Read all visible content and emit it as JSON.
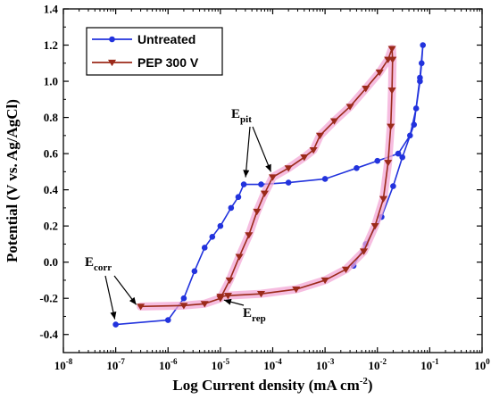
{
  "chart_data": {
    "type": "line",
    "x_scale": "log",
    "xlabel": "Log Current density (mA cm",
    "xlabel_sup": "-2",
    "xlabel_close": ")",
    "ylabel": "Potential (V vs. Ag/AgCl)",
    "xlim": [
      1e-08,
      1
    ],
    "ylim": [
      -0.5,
      1.4
    ],
    "x_ticks": [
      {
        "base": "10",
        "exp": "-8",
        "value": 1e-08
      },
      {
        "base": "10",
        "exp": "-7",
        "value": 1e-07
      },
      {
        "base": "10",
        "exp": "-6",
        "value": 1e-06
      },
      {
        "base": "10",
        "exp": "-5",
        "value": 1e-05
      },
      {
        "base": "10",
        "exp": "-4",
        "value": 0.0001
      },
      {
        "base": "10",
        "exp": "-3",
        "value": 0.001
      },
      {
        "base": "10",
        "exp": "-2",
        "value": 0.01
      },
      {
        "base": "10",
        "exp": "-1",
        "value": 0.1
      },
      {
        "base": "10",
        "exp": "0",
        "value": 1
      }
    ],
    "y_ticks": [
      "-0.4",
      "-0.2",
      "0.0",
      "0.2",
      "0.4",
      "0.6",
      "0.8",
      "1.0",
      "1.2",
      "1.4"
    ],
    "y_tick_values": [
      -0.4,
      -0.2,
      0.0,
      0.2,
      0.4,
      0.6,
      0.8,
      1.0,
      1.2,
      1.4
    ],
    "legend_position": "top-left",
    "series": [
      {
        "name": "Untreated",
        "color": "#2233dd",
        "marker": "circle",
        "points": [
          [
            1e-07,
            -0.345
          ],
          [
            1e-06,
            -0.32
          ],
          [
            2e-06,
            -0.2
          ],
          [
            3.2e-06,
            -0.05
          ],
          [
            5e-06,
            0.08
          ],
          [
            7e-06,
            0.14
          ],
          [
            1e-05,
            0.2
          ],
          [
            1.6e-05,
            0.3
          ],
          [
            2.2e-05,
            0.36
          ],
          [
            2.8e-05,
            0.43
          ],
          [
            6e-05,
            0.43
          ],
          [
            0.0002,
            0.44
          ],
          [
            0.001,
            0.46
          ],
          [
            0.004,
            0.52
          ],
          [
            0.01,
            0.56
          ],
          [
            0.025,
            0.6
          ],
          [
            0.042,
            0.7
          ],
          [
            0.055,
            0.85
          ],
          [
            0.065,
            1.0
          ],
          [
            0.07,
            1.1
          ],
          [
            0.074,
            1.2
          ],
          [
            0.065,
            1.02
          ],
          [
            0.05,
            0.76
          ],
          [
            0.03,
            0.58
          ],
          [
            0.02,
            0.42
          ],
          [
            0.012,
            0.25
          ],
          [
            0.006,
            0.1
          ],
          [
            0.0035,
            -0.02
          ]
        ]
      },
      {
        "name": "PEP 300 V",
        "color": "#9b2a1a",
        "marker": "triangle-down",
        "points": [
          [
            3e-07,
            -0.245
          ],
          [
            2e-06,
            -0.24
          ],
          [
            5e-06,
            -0.23
          ],
          [
            1e-05,
            -0.2
          ],
          [
            1.5e-05,
            -0.1
          ],
          [
            2.3e-05,
            0.03
          ],
          [
            3.5e-05,
            0.15
          ],
          [
            5e-05,
            0.28
          ],
          [
            7e-05,
            0.38
          ],
          [
            0.0001,
            0.47
          ],
          [
            0.0002,
            0.52
          ],
          [
            0.0004,
            0.58
          ],
          [
            0.0006,
            0.62
          ],
          [
            0.0008,
            0.7
          ],
          [
            0.0015,
            0.78
          ],
          [
            0.003,
            0.86
          ],
          [
            0.006,
            0.96
          ],
          [
            0.011,
            1.05
          ],
          [
            0.016,
            1.12
          ],
          [
            0.019,
            1.18
          ],
          [
            0.0195,
            1.12
          ],
          [
            0.019,
            0.95
          ],
          [
            0.018,
            0.75
          ],
          [
            0.016,
            0.55
          ],
          [
            0.013,
            0.35
          ],
          [
            0.009,
            0.2
          ],
          [
            0.0055,
            0.06
          ],
          [
            0.0025,
            -0.04
          ],
          [
            0.001,
            -0.1
          ],
          [
            0.00028,
            -0.15
          ],
          [
            6e-05,
            -0.175
          ],
          [
            1.4e-05,
            -0.185
          ],
          [
            1e-05,
            -0.19
          ]
        ]
      }
    ],
    "annotations": [
      {
        "main": "E",
        "sub": "pit"
      },
      {
        "main": "E",
        "sub": "corr"
      },
      {
        "main": "E",
        "sub": "rep"
      }
    ]
  }
}
